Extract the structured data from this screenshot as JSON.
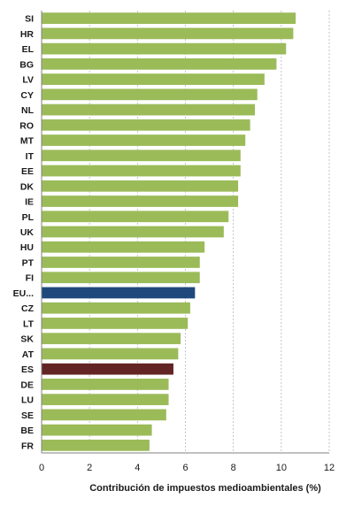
{
  "chart_data": {
    "type": "bar",
    "orientation": "horizontal",
    "categories": [
      "SI",
      "HR",
      "EL",
      "BG",
      "LV",
      "CY",
      "NL",
      "RO",
      "MT",
      "IT",
      "EE",
      "DK",
      "IE",
      "PL",
      "UK",
      "HU",
      "PT",
      "FI",
      "EU...",
      "CZ",
      "LT",
      "SK",
      "AT",
      "ES",
      "DE",
      "LU",
      "SE",
      "BE",
      "FR"
    ],
    "values": [
      10.6,
      10.5,
      10.2,
      9.8,
      9.3,
      9.0,
      8.9,
      8.7,
      8.5,
      8.3,
      8.3,
      8.2,
      8.2,
      7.8,
      7.6,
      6.8,
      6.6,
      6.6,
      6.4,
      6.2,
      6.1,
      5.8,
      5.7,
      5.5,
      5.3,
      5.3,
      5.2,
      4.6,
      4.5
    ],
    "xlabel": "Contribución de impuestos medioambientales (%)",
    "ylabel": "",
    "xlim": [
      0,
      12
    ],
    "xticks": [
      "0",
      "2",
      "4",
      "6",
      "8",
      "10",
      "12"
    ],
    "grid": "vertical dashed",
    "colors": {
      "default": "#9bbb59",
      "highlight_eu": "#1f497d",
      "highlight_es": "#632523",
      "grid": "#aeb8c8",
      "axis": "#808080",
      "text": "#1a1a1a"
    },
    "highlight": {
      "EU...": "highlight_eu",
      "ES": "highlight_es"
    }
  }
}
